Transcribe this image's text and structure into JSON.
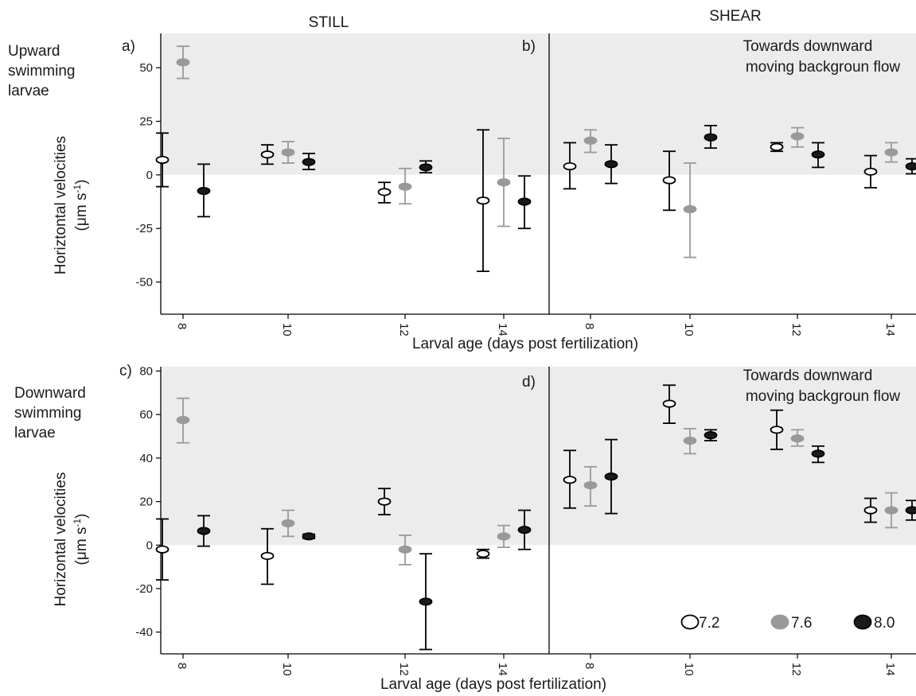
{
  "figure": {
    "column_titles": [
      "STILL",
      "SHEAR"
    ],
    "row_labels": [
      [
        "Upward",
        "swimming",
        "larvae"
      ],
      [
        "Downward",
        "swimming",
        "larvae"
      ]
    ],
    "ylabel_line1": "Horiztontal velocities",
    "ylabel_line2_pre": "(μm s",
    "ylabel_line2_sup": "-1",
    "ylabel_line2_post": ")",
    "ylabel_bottom_line1": "Horizontal velocities",
    "xlabel": "Larval age (days post fertilization)",
    "panel_letters": [
      "a)",
      "b)",
      "c)",
      "d)"
    ],
    "annotation_lines": [
      "Towards downward",
      "moving backgroun flow"
    ],
    "legend": [
      {
        "label": "7.2",
        "fill": "#ffffff",
        "stroke": "#000000"
      },
      {
        "label": "7.6",
        "fill": "#999999",
        "stroke": "#999999"
      },
      {
        "label": "8.0",
        "fill": "#1a1a1a",
        "stroke": "#000000"
      }
    ],
    "shade_color": "#ececec"
  },
  "chart_data": [
    {
      "type": "scatter",
      "panel": "a)",
      "condition": "STILL",
      "direction": "Upward swimming larvae",
      "x": [
        8,
        10,
        12,
        14
      ],
      "ylim": [
        -65,
        66
      ],
      "yticks": [
        -50,
        -25,
        0,
        25,
        50
      ],
      "shaded_region": [
        0,
        66
      ],
      "series": [
        {
          "name": "7.2",
          "values": [
            7,
            9.5,
            -8,
            -12
          ],
          "errors_low": [
            -5.5,
            5,
            -13,
            -45
          ],
          "errors_high": [
            19.5,
            14,
            -3.5,
            21
          ]
        },
        {
          "name": "7.6",
          "values": [
            52.5,
            10.5,
            -5.5,
            -3.5
          ],
          "errors_low": [
            45,
            5.5,
            -13.5,
            -24
          ],
          "errors_high": [
            60,
            15.5,
            3,
            17
          ]
        },
        {
          "name": "8.0",
          "values": [
            -7.5,
            6,
            3.5,
            -12.5
          ],
          "errors_low": [
            -19.5,
            2.5,
            1,
            -25
          ],
          "errors_high": [
            5,
            10,
            6.5,
            -0.5
          ]
        }
      ]
    },
    {
      "type": "scatter",
      "panel": "b)",
      "condition": "SHEAR",
      "direction": "Upward swimming larvae",
      "x": [
        8,
        10,
        12,
        14
      ],
      "ylim": [
        -65,
        66
      ],
      "yticks": [
        -50,
        -25,
        0,
        25,
        50
      ],
      "shaded_region": [
        0,
        66
      ],
      "series": [
        {
          "name": "7.2",
          "values": [
            4,
            -2.5,
            13,
            1.5
          ],
          "errors_low": [
            -6.5,
            -16.5,
            11,
            -6
          ],
          "errors_high": [
            15,
            11,
            15,
            9
          ]
        },
        {
          "name": "7.6",
          "values": [
            16,
            -16,
            18,
            10.5
          ],
          "errors_low": [
            10.5,
            -38.5,
            13,
            6
          ],
          "errors_high": [
            21,
            5.5,
            22,
            15
          ]
        },
        {
          "name": "8.0",
          "values": [
            5,
            17.5,
            9.5,
            4
          ],
          "errors_low": [
            -4,
            12.5,
            3.5,
            0.5
          ],
          "errors_high": [
            14,
            23,
            15,
            7.5
          ]
        }
      ]
    },
    {
      "type": "scatter",
      "panel": "c)",
      "condition": "STILL",
      "direction": "Downward swimming larvae",
      "x": [
        8,
        10,
        12,
        14
      ],
      "ylim": [
        -50,
        82
      ],
      "yticks": [
        -40,
        -20,
        0,
        20,
        40,
        60,
        80
      ],
      "shaded_region": [
        0,
        82
      ],
      "series": [
        {
          "name": "7.2",
          "values": [
            -2,
            -5,
            20,
            -4
          ],
          "errors_low": [
            -16,
            -18,
            14,
            -6
          ],
          "errors_high": [
            12,
            7.5,
            26,
            -2
          ]
        },
        {
          "name": "7.6",
          "values": [
            57.5,
            10,
            -2,
            4
          ],
          "errors_low": [
            47,
            4,
            -9,
            -1
          ],
          "errors_high": [
            67.5,
            16,
            4.5,
            9
          ]
        },
        {
          "name": "8.0",
          "values": [
            6.5,
            4,
            -26,
            7
          ],
          "errors_low": [
            -0.5,
            3,
            -48,
            -2
          ],
          "errors_high": [
            13.5,
            5,
            -4,
            16
          ]
        }
      ]
    },
    {
      "type": "scatter",
      "panel": "d)",
      "condition": "SHEAR",
      "direction": "Downward swimming larvae",
      "x": [
        8,
        10,
        12,
        14
      ],
      "ylim": [
        -50,
        82
      ],
      "yticks": [
        -40,
        -20,
        0,
        20,
        40,
        60,
        80
      ],
      "shaded_region": [
        0,
        82
      ],
      "series": [
        {
          "name": "7.2",
          "values": [
            30,
            65,
            53,
            16
          ],
          "errors_low": [
            17,
            56,
            44,
            10.5
          ],
          "errors_high": [
            43.5,
            73.5,
            62,
            21.5
          ]
        },
        {
          "name": "7.6",
          "values": [
            27.5,
            48,
            49,
            16
          ],
          "errors_low": [
            18,
            42,
            45.5,
            8
          ],
          "errors_high": [
            36,
            53.5,
            53,
            24
          ]
        },
        {
          "name": "8.0",
          "values": [
            31.5,
            50.5,
            42,
            16
          ],
          "errors_low": [
            14.5,
            48,
            38,
            11.5
          ],
          "errors_high": [
            48.5,
            53,
            45.5,
            20.5
          ]
        }
      ]
    }
  ]
}
